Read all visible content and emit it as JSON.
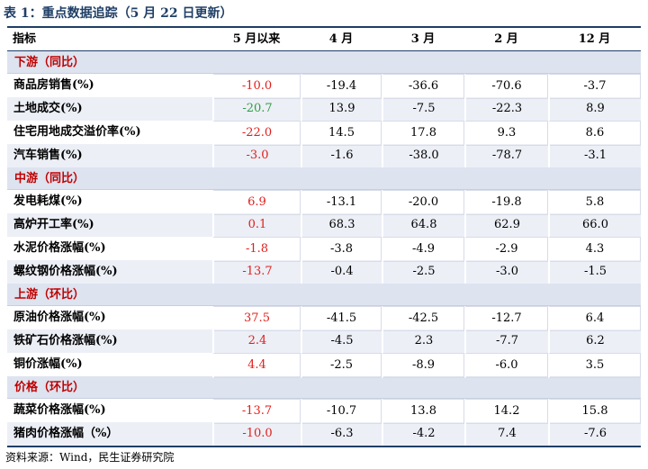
{
  "title": "表 1：重点数据追踪（5 月 22 日更新）",
  "headers": [
    "指标",
    "5 月以来",
    "4 月",
    "3 月",
    "2 月",
    "12 月"
  ],
  "sections": [
    {
      "label": "下游（同比）",
      "rows": [
        {
          "name": "商品房销售(%)",
          "values": [
            "-10.0",
            "-19.4",
            "-36.6",
            "-70.6",
            "-3.7"
          ],
          "first_color": "red"
        },
        {
          "name": "土地成交(%)",
          "values": [
            "-20.7",
            "13.9",
            "-7.5",
            "-22.3",
            "8.9"
          ],
          "first_color": "green"
        },
        {
          "name": "住宅用地成交溢价率(%)",
          "values": [
            "-22.0",
            "14.5",
            "17.8",
            "9.3",
            "8.6"
          ],
          "first_color": "red"
        },
        {
          "name": "汽车销售(%)",
          "values": [
            "-3.0",
            "-1.6",
            "-38.0",
            "-78.7",
            "-3.1"
          ],
          "first_color": "red"
        }
      ]
    },
    {
      "label": "中游（同比）",
      "rows": [
        {
          "name": "发电耗煤(%)",
          "values": [
            "6.9",
            "-13.1",
            "-20.0",
            "-19.8",
            "5.8"
          ],
          "first_color": "red"
        },
        {
          "name": "高炉开工率(%)",
          "values": [
            "0.1",
            "68.3",
            "64.8",
            "62.9",
            "66.0"
          ],
          "first_color": "red"
        },
        {
          "name": "水泥价格涨幅(%)",
          "values": [
            "-1.8",
            "-3.8",
            "-4.9",
            "-2.9",
            "4.3"
          ],
          "first_color": "red"
        },
        {
          "name": "螺纹钢价格涨幅(%)",
          "values": [
            "-13.7",
            "-0.4",
            "-2.5",
            "-3.0",
            "-1.5"
          ],
          "first_color": "red"
        }
      ]
    },
    {
      "label": "上游（环比）",
      "rows": [
        {
          "name": "原油价格涨幅(%)",
          "values": [
            "37.5",
            "-41.5",
            "-42.5",
            "-12.7",
            "6.4"
          ],
          "first_color": "red"
        },
        {
          "name": "铁矿石价格涨幅(%)",
          "values": [
            "2.4",
            "-4.5",
            "2.3",
            "-7.7",
            "6.2"
          ],
          "first_color": "red"
        },
        {
          "name": "铜价涨幅(%)",
          "values": [
            "4.4",
            "-2.5",
            "-8.9",
            "-6.0",
            "3.5"
          ],
          "first_color": "red"
        }
      ]
    },
    {
      "label": "价格（环比）",
      "rows": [
        {
          "name": "蔬菜价格涨幅(%)",
          "values": [
            "-13.7",
            "-10.7",
            "13.8",
            "14.2",
            "15.8"
          ],
          "first_color": "red"
        },
        {
          "name": "猪肉价格涨幅（%）",
          "values": [
            "-10.0",
            "-6.3",
            "-4.2",
            "7.4",
            "-7.6"
          ],
          "first_color": "red"
        }
      ]
    }
  ],
  "source": "资料来源：Wind，民生证券研究院",
  "colors": {
    "header_line": "#1f3f66",
    "section_bg": "#dde3ef",
    "section_text": "#c00000",
    "red": "#e0201d",
    "green": "#2f9e44"
  }
}
